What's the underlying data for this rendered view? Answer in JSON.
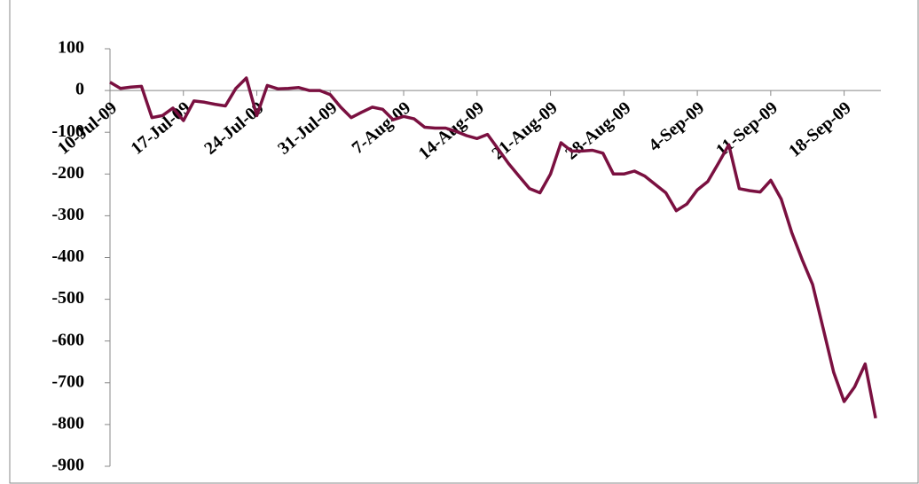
{
  "chart_data": {
    "type": "line",
    "categories": [
      "10-Jul-09",
      null,
      null,
      null,
      null,
      null,
      null,
      "17-Jul-09",
      null,
      null,
      null,
      null,
      null,
      null,
      "24-Jul-09",
      null,
      null,
      null,
      null,
      null,
      null,
      "31-Jul-09",
      null,
      null,
      null,
      null,
      null,
      null,
      "7-Aug-09",
      null,
      null,
      null,
      null,
      null,
      null,
      "14-Aug-09",
      null,
      null,
      null,
      null,
      null,
      null,
      "21-Aug-09",
      null,
      null,
      null,
      null,
      null,
      null,
      "28-Aug-09",
      null,
      null,
      null,
      null,
      null,
      null,
      "4-Sep-09",
      null,
      null,
      null,
      null,
      null,
      null,
      "11-Sep-09",
      null,
      null,
      null,
      null,
      null,
      null,
      "18-Sep-09",
      null,
      null,
      null
    ],
    "series": [
      {
        "color": "#7a1040",
        "values": [
          20,
          5,
          8,
          10,
          -65,
          -60,
          -42,
          -72,
          -25,
          -28,
          -33,
          -37,
          5,
          30,
          -60,
          12,
          4,
          5,
          7,
          0,
          0,
          -10,
          -40,
          -65,
          -52,
          -40,
          -45,
          -70,
          -62,
          -68,
          -88,
          -90,
          -90,
          -98,
          -108,
          -115,
          -105,
          -140,
          -175,
          -205,
          -235,
          -245,
          -200,
          -125,
          -145,
          -145,
          -143,
          -150,
          -200,
          -200,
          -193,
          -205,
          -225,
          -245,
          -288,
          -272,
          -238,
          -218,
          -175,
          -130,
          -235,
          -240,
          -243,
          -215,
          -260,
          -340,
          -405,
          -465,
          -570,
          -675,
          -745,
          -710,
          -655,
          -785
        ]
      }
    ],
    "ylim": [
      -900,
      100
    ],
    "yticks": [
      -900,
      -800,
      -700,
      -600,
      -500,
      -400,
      -300,
      -200,
      -100,
      0,
      100
    ]
  }
}
